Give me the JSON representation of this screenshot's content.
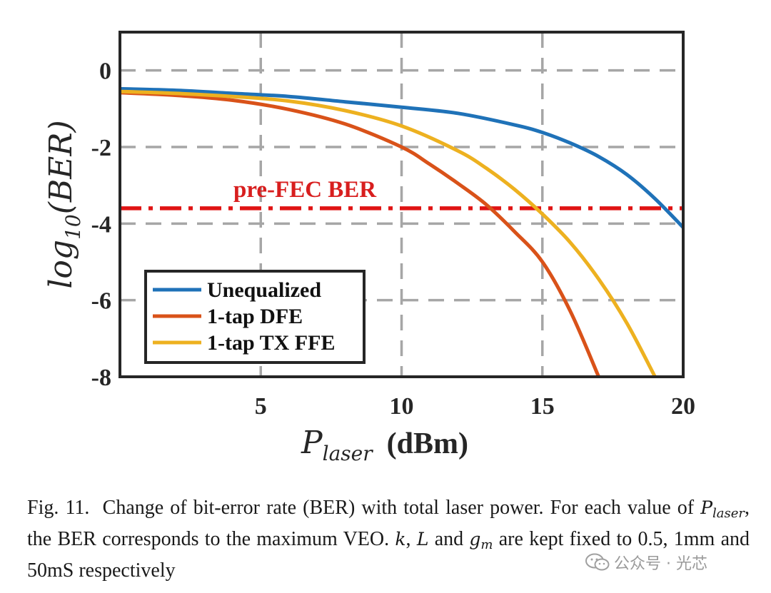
{
  "chart_data": {
    "type": "line",
    "xlabel": {
      "symbol": "P",
      "subscript": "laser",
      "unit": "(dBm)"
    },
    "ylabel": {
      "prefix": "log",
      "subscript": "10",
      "arg": "(BER)"
    },
    "xlim": [
      0,
      20
    ],
    "ylim": [
      -8,
      1
    ],
    "xticks": [
      5,
      10,
      15,
      20
    ],
    "xtick_labels": [
      "5",
      "10",
      "15",
      "20"
    ],
    "yticks": [
      0,
      -2,
      -4,
      -6,
      -8
    ],
    "ytick_labels": [
      "0",
      "-2",
      "-4",
      "-6",
      "-8"
    ],
    "grid": true,
    "legend_position": "bottom-left",
    "series": [
      {
        "name": "Unequalized",
        "color": "#1f72b8",
        "x": [
          0,
          2,
          4,
          6,
          8,
          10,
          12,
          14,
          15,
          16,
          17,
          18,
          19,
          20
        ],
        "y": [
          -0.48,
          -0.52,
          -0.6,
          -0.68,
          -0.82,
          -0.96,
          -1.12,
          -1.42,
          -1.62,
          -1.9,
          -2.25,
          -2.72,
          -3.35,
          -4.1
        ]
      },
      {
        "name": "1-tap DFE",
        "color": "#d95219",
        "x": [
          0,
          2,
          4,
          6,
          8,
          10,
          11,
          12,
          13,
          14,
          15,
          16,
          17
        ],
        "y": [
          -0.58,
          -0.65,
          -0.78,
          -1.02,
          -1.4,
          -2.0,
          -2.45,
          -2.95,
          -3.5,
          -4.2,
          -5.0,
          -6.3,
          -8.0
        ]
      },
      {
        "name": "1-tap TX FFE",
        "color": "#edb120",
        "x": [
          0,
          2,
          4,
          6,
          8,
          10,
          12,
          13,
          14,
          15,
          16,
          17,
          18,
          19
        ],
        "y": [
          -0.55,
          -0.6,
          -0.68,
          -0.8,
          -1.05,
          -1.45,
          -2.1,
          -2.55,
          -3.1,
          -3.75,
          -4.5,
          -5.45,
          -6.6,
          -8.0
        ]
      }
    ],
    "threshold": {
      "label": "pre-FEC BER",
      "y": -3.6,
      "color": "#e01414",
      "style": "dash-dot"
    }
  },
  "caption": {
    "fig_label": "Fig. 11.",
    "line1": "Change of bit-error rate (BER) with total laser power. For each value",
    "line2_a": "of",
    "line2_sym": "P",
    "line2_sub": "laser",
    "line2_b": ", the BER corresponds to the maximum VEO.",
    "line2_k": "k",
    "line2_c": ",",
    "line2_L": "L",
    "line2_d": "and",
    "line2_g": "g",
    "line2_gsub": "m",
    "line2_e": "are kept",
    "line3": "fixed to 0.5, 1mm and 50mS respectively"
  },
  "watermark": {
    "text": "公众号 · 光芯"
  }
}
